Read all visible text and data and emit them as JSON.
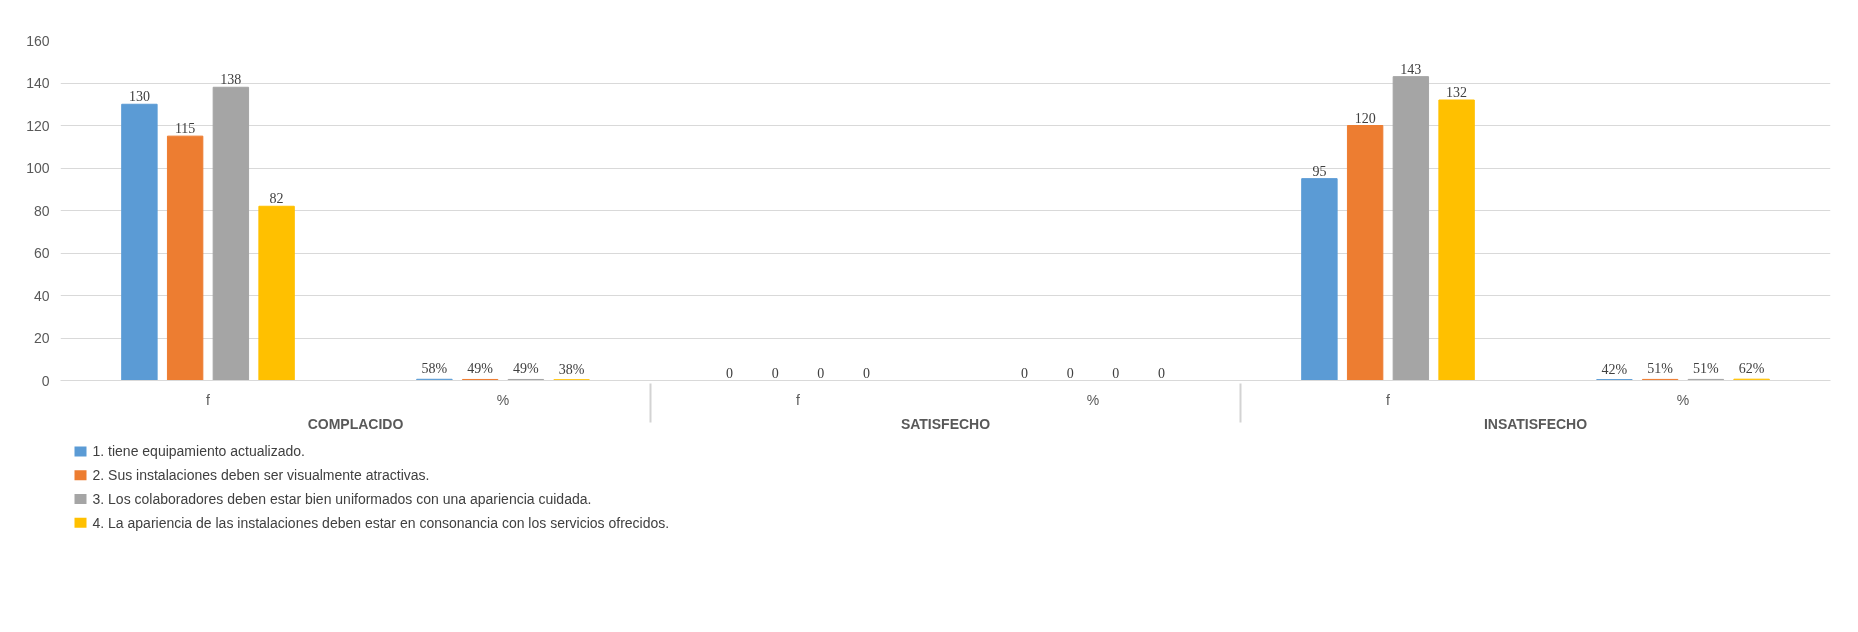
{
  "chart_data": {
    "type": "bar",
    "categories": [
      "f",
      "%",
      "f",
      "%",
      "f",
      "%"
    ],
    "annotations": [
      "COMPLACIDO",
      "SATISFECHO",
      "INSATISFECHO"
    ],
    "series": [
      {
        "name": "1. tiene equipamiento actualizado.",
        "color": "#5b9bd5",
        "values": [
          130,
          0.58,
          0,
          0,
          95,
          0.42
        ],
        "value_labels": [
          "130",
          "58%",
          "0",
          "0",
          "95",
          "42%"
        ]
      },
      {
        "name": "2. Sus  instalaciones deben ser visualmente atractivas.",
        "color": "#ed7d31",
        "values": [
          115,
          0.49,
          0,
          0,
          120,
          0.51
        ],
        "value_labels": [
          "115",
          "49%",
          "0",
          "0",
          "120",
          "51%"
        ]
      },
      {
        "name": "3. Los  colaboradores  deben  estar  bien uniformados con una apariencia cuidada.",
        "color": "#a5a5a5",
        "values": [
          138,
          0.49,
          0,
          0,
          143,
          0.51
        ],
        "value_labels": [
          "138",
          "49%",
          "0",
          "0",
          "143",
          "51%"
        ]
      },
      {
        "name": "4. La apariencia de las instalaciones deben estar en consonancia con los servicios ofrecidos.",
        "color": "#ffc000",
        "values": [
          82,
          0.38,
          0,
          0,
          132,
          0.62
        ],
        "value_labels": [
          "82",
          "38%",
          "0",
          "0",
          "132",
          "62%"
        ]
      }
    ],
    "ylim": [
      0,
      160
    ],
    "yticks": [
      0,
      20,
      40,
      60,
      80,
      100,
      120,
      140,
      160
    ],
    "grid": "y",
    "legend": "bottom"
  }
}
